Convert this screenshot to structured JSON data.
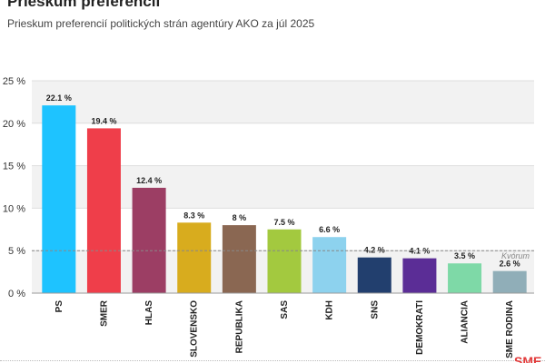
{
  "header": {
    "title": "Prieskum preferencií",
    "subtitle": "Prieskum preferencií politických strán agentúry AKO za júl 2025"
  },
  "footer": {
    "brand": "SME"
  },
  "chart_data": {
    "type": "bar",
    "categories": [
      "PS",
      "SMER",
      "HLAS",
      "SLOVENSKO",
      "REPUBLIKA",
      "SAS",
      "KDH",
      "SNS",
      "DEMOKRATI",
      "ALIANCIA",
      "SME RODINA"
    ],
    "values": [
      22.1,
      19.4,
      12.4,
      8.3,
      8,
      7.5,
      6.6,
      4.2,
      4.1,
      3.5,
      2.6
    ],
    "value_labels": [
      "22.1 %",
      "19.4 %",
      "12.4 %",
      "8.3 %",
      "8 %",
      "7.5 %",
      "6.6 %",
      "4.2 %",
      "4.1 %",
      "3.5 %",
      "2.6 %"
    ],
    "colors": [
      "#1ec3ff",
      "#ef3e4a",
      "#9c3e64",
      "#d8ac1e",
      "#8a6752",
      "#a3c93f",
      "#8dd2ee",
      "#223f6e",
      "#5b2d96",
      "#7ed9a7",
      "#90aeb8"
    ],
    "ylim": [
      0,
      25
    ],
    "yticks": [
      0,
      5,
      10,
      15,
      20,
      25
    ],
    "ytick_labels": [
      "0 %",
      "5 %",
      "10 %",
      "15 %",
      "20 %",
      "25 %"
    ],
    "threshold": {
      "value": 5,
      "label": "Kvórum"
    },
    "grid": true,
    "xlabel": "",
    "ylabel": ""
  }
}
